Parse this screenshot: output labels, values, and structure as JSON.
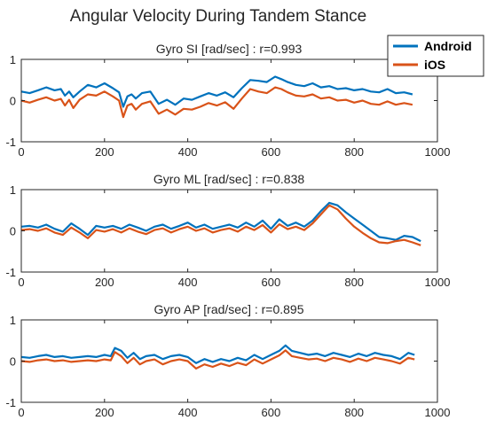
{
  "figure": {
    "title": "Angular Velocity During Tandem Stance",
    "colors": {
      "android": "#0072BD",
      "ios": "#D95319",
      "axis": "#262626"
    }
  },
  "legend": {
    "entries": [
      {
        "label": "Android",
        "color": "#0072BD"
      },
      {
        "label": "iOS",
        "color": "#D95319"
      }
    ]
  },
  "chart_data": [
    {
      "type": "line",
      "title": "Gyro SI [rad/sec] : r=0.993",
      "xlim": [
        0,
        1000
      ],
      "ylim": [
        -1,
        1
      ],
      "xticks": [
        0,
        200,
        400,
        600,
        800,
        1000
      ],
      "yticks": [
        -1,
        0,
        1
      ],
      "grid": false,
      "series": [
        {
          "name": "Android",
          "x": [
            0,
            20,
            40,
            60,
            80,
            95,
            105,
            115,
            125,
            140,
            160,
            180,
            200,
            220,
            235,
            245,
            255,
            265,
            275,
            290,
            310,
            330,
            350,
            370,
            390,
            410,
            430,
            450,
            470,
            490,
            510,
            530,
            550,
            570,
            590,
            610,
            625,
            640,
            660,
            680,
            700,
            720,
            740,
            760,
            780,
            800,
            820,
            840,
            860,
            880,
            900,
            920,
            940
          ],
          "y": [
            0.22,
            0.18,
            0.25,
            0.32,
            0.25,
            0.28,
            0.12,
            0.22,
            0.08,
            0.22,
            0.38,
            0.32,
            0.42,
            0.3,
            0.2,
            -0.15,
            0.1,
            0.15,
            0.05,
            0.18,
            0.22,
            -0.08,
            0.02,
            -0.1,
            0.05,
            0.02,
            0.1,
            0.18,
            0.12,
            0.2,
            0.08,
            0.3,
            0.5,
            0.48,
            0.45,
            0.58,
            0.52,
            0.45,
            0.38,
            0.35,
            0.42,
            0.32,
            0.35,
            0.28,
            0.3,
            0.25,
            0.28,
            0.22,
            0.2,
            0.28,
            0.18,
            0.2,
            0.15
          ]
        },
        {
          "name": "iOS",
          "x": [
            0,
            20,
            40,
            60,
            80,
            95,
            105,
            115,
            125,
            140,
            160,
            180,
            200,
            220,
            235,
            245,
            255,
            265,
            275,
            290,
            310,
            330,
            350,
            370,
            390,
            410,
            430,
            450,
            470,
            490,
            510,
            530,
            550,
            570,
            590,
            610,
            625,
            640,
            660,
            680,
            700,
            720,
            740,
            760,
            780,
            800,
            820,
            840,
            860,
            880,
            900,
            920,
            940
          ],
          "y": [
            0.0,
            -0.05,
            0.02,
            0.08,
            0.0,
            0.04,
            -0.12,
            0.02,
            -0.18,
            0.02,
            0.15,
            0.12,
            0.22,
            0.1,
            0.0,
            -0.4,
            -0.12,
            -0.08,
            -0.22,
            -0.08,
            -0.02,
            -0.32,
            -0.22,
            -0.34,
            -0.2,
            -0.22,
            -0.15,
            -0.06,
            -0.12,
            -0.04,
            -0.2,
            0.05,
            0.28,
            0.22,
            0.18,
            0.32,
            0.28,
            0.2,
            0.12,
            0.1,
            0.15,
            0.05,
            0.08,
            0.0,
            0.02,
            -0.05,
            0.0,
            -0.08,
            -0.1,
            -0.02,
            -0.1,
            -0.06,
            -0.1
          ]
        }
      ]
    },
    {
      "type": "line",
      "title": "Gyro ML [rad/sec] : r=0.838",
      "xlim": [
        0,
        1000
      ],
      "ylim": [
        -1,
        1
      ],
      "xticks": [
        0,
        200,
        400,
        600,
        800,
        1000
      ],
      "yticks": [
        -1,
        0,
        1
      ],
      "grid": false,
      "series": [
        {
          "name": "Android",
          "x": [
            0,
            20,
            40,
            60,
            80,
            100,
            120,
            140,
            160,
            180,
            200,
            220,
            240,
            260,
            280,
            300,
            320,
            340,
            360,
            380,
            400,
            420,
            440,
            460,
            480,
            500,
            520,
            540,
            560,
            580,
            600,
            620,
            640,
            660,
            680,
            700,
            720,
            740,
            760,
            780,
            800,
            820,
            840,
            860,
            880,
            900,
            920,
            940,
            960
          ],
          "y": [
            0.1,
            0.12,
            0.08,
            0.15,
            0.05,
            -0.02,
            0.18,
            0.05,
            -0.1,
            0.12,
            0.08,
            0.12,
            0.05,
            0.15,
            0.08,
            0.0,
            0.1,
            0.15,
            0.05,
            0.12,
            0.2,
            0.08,
            0.15,
            0.05,
            0.1,
            0.15,
            0.08,
            0.2,
            0.1,
            0.25,
            0.05,
            0.28,
            0.12,
            0.2,
            0.1,
            0.25,
            0.48,
            0.68,
            0.62,
            0.45,
            0.3,
            0.15,
            0.0,
            -0.15,
            -0.18,
            -0.22,
            -0.12,
            -0.15,
            -0.25
          ]
        },
        {
          "name": "iOS",
          "x": [
            0,
            20,
            40,
            60,
            80,
            100,
            120,
            140,
            160,
            180,
            200,
            220,
            240,
            260,
            280,
            300,
            320,
            340,
            360,
            380,
            400,
            420,
            440,
            460,
            480,
            500,
            520,
            540,
            560,
            580,
            600,
            620,
            640,
            660,
            680,
            700,
            720,
            740,
            760,
            780,
            800,
            820,
            840,
            860,
            880,
            900,
            920,
            940,
            960
          ],
          "y": [
            0.02,
            0.04,
            0.0,
            0.06,
            -0.04,
            -0.1,
            0.08,
            -0.04,
            -0.18,
            0.02,
            -0.02,
            0.04,
            -0.04,
            0.06,
            -0.02,
            -0.08,
            0.02,
            0.06,
            -0.04,
            0.04,
            0.1,
            0.0,
            0.06,
            -0.04,
            0.02,
            0.06,
            -0.02,
            0.1,
            0.02,
            0.14,
            -0.04,
            0.16,
            0.04,
            0.1,
            0.02,
            0.18,
            0.4,
            0.62,
            0.52,
            0.3,
            0.1,
            -0.05,
            -0.18,
            -0.28,
            -0.3,
            -0.25,
            -0.22,
            -0.28,
            -0.35
          ]
        }
      ]
    },
    {
      "type": "line",
      "title": "Gyro AP [rad/sec] : r=0.895",
      "xlim": [
        0,
        1000
      ],
      "ylim": [
        -1,
        1
      ],
      "xticks": [
        0,
        200,
        400,
        600,
        800,
        1000
      ],
      "yticks": [
        -1,
        0,
        1
      ],
      "grid": false,
      "series": [
        {
          "name": "Android",
          "x": [
            0,
            20,
            40,
            60,
            80,
            100,
            120,
            140,
            160,
            180,
            200,
            215,
            225,
            240,
            255,
            270,
            285,
            300,
            320,
            340,
            360,
            380,
            400,
            420,
            440,
            460,
            480,
            500,
            520,
            540,
            560,
            580,
            600,
            620,
            635,
            650,
            670,
            690,
            710,
            730,
            750,
            770,
            790,
            810,
            830,
            850,
            870,
            890,
            910,
            930,
            945
          ],
          "y": [
            0.1,
            0.08,
            0.12,
            0.15,
            0.1,
            0.12,
            0.08,
            0.1,
            0.12,
            0.1,
            0.15,
            0.12,
            0.32,
            0.25,
            0.08,
            0.2,
            0.05,
            0.12,
            0.15,
            0.05,
            0.12,
            0.15,
            0.1,
            -0.05,
            0.05,
            -0.02,
            0.05,
            0.0,
            0.08,
            0.02,
            0.15,
            0.05,
            0.15,
            0.25,
            0.38,
            0.25,
            0.2,
            0.15,
            0.18,
            0.12,
            0.2,
            0.15,
            0.1,
            0.18,
            0.12,
            0.2,
            0.15,
            0.12,
            0.05,
            0.2,
            0.15
          ]
        },
        {
          "name": "iOS",
          "x": [
            0,
            20,
            40,
            60,
            80,
            100,
            120,
            140,
            160,
            180,
            200,
            215,
            225,
            240,
            255,
            270,
            285,
            300,
            320,
            340,
            360,
            380,
            400,
            420,
            440,
            460,
            480,
            500,
            520,
            540,
            560,
            580,
            600,
            620,
            635,
            650,
            670,
            690,
            710,
            730,
            750,
            770,
            790,
            810,
            830,
            850,
            870,
            890,
            910,
            930,
            945
          ],
          "y": [
            0.0,
            -0.02,
            0.02,
            0.04,
            0.0,
            0.02,
            -0.02,
            0.0,
            0.02,
            0.0,
            0.04,
            0.02,
            0.22,
            0.12,
            -0.05,
            0.08,
            -0.08,
            0.0,
            0.04,
            -0.08,
            0.0,
            0.04,
            0.0,
            -0.18,
            -0.08,
            -0.14,
            -0.06,
            -0.12,
            -0.04,
            -0.1,
            0.04,
            -0.06,
            0.04,
            0.14,
            0.26,
            0.12,
            0.08,
            0.04,
            0.06,
            0.0,
            0.08,
            0.04,
            -0.02,
            0.06,
            0.0,
            0.08,
            0.04,
            0.0,
            -0.06,
            0.08,
            0.04
          ]
        }
      ]
    }
  ]
}
